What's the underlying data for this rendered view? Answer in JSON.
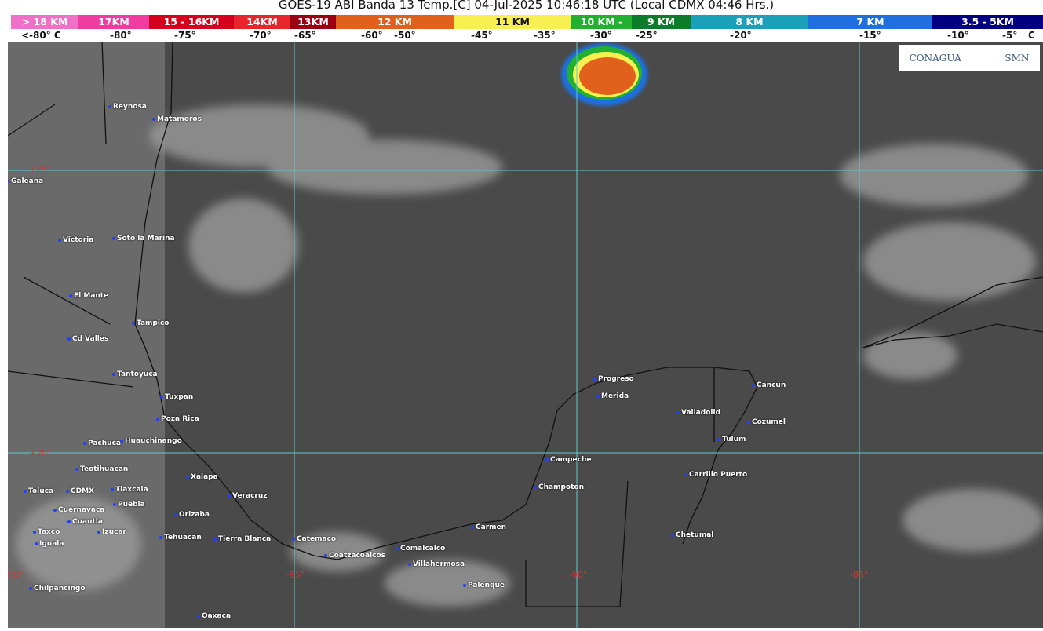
{
  "title": "GOES-19 ABI Banda 13 Temp.[C] 04-Jul-2025 10:46:18 UTC (Local CDMX  04:46 Hrs.)",
  "scale": [
    {
      "label": "> 18 KM",
      "color": "#f070c8"
    },
    {
      "label": "17KM",
      "color": "#f03ca0"
    },
    {
      "label": "15 - 16KM",
      "color": "#d4001c"
    },
    {
      "label": "14KM",
      "color": "#e8242c"
    },
    {
      "label": "13KM",
      "color": "#9a0012"
    },
    {
      "label": "12 KM",
      "color": "#e0601c"
    },
    {
      "label": "11 KM",
      "color": "#f8f050"
    },
    {
      "label": "10 KM -",
      "color": "#22b030"
    },
    {
      "label": "9 KM",
      "color": "#0b7d2a"
    },
    {
      "label": "8 KM",
      "color": "#1aa0b8"
    },
    {
      "label": "7 KM",
      "color": "#1f6fe0"
    },
    {
      "label": "3.5 - 5KM",
      "color": "#000080"
    }
  ],
  "temps": [
    "<-80° C",
    "-80°",
    "-75°",
    "-70°",
    "-65°",
    "-60°",
    "-50°",
    "-45°",
    "-35°",
    "-30°",
    "-25°",
    "-20°",
    "-15°",
    "-10°",
    "-5°",
    "C"
  ],
  "grid_labels": [
    "+25°",
    "+20°",
    "-100°",
    "-95°",
    "-90°",
    "-85°"
  ],
  "cities": [
    "Reynosa",
    "Matamoros",
    "Galeana",
    "Victoria",
    "Soto la Marina",
    "El Mante",
    "Tampico",
    "Cd Valles",
    "Tantoyuca",
    "Tuxpan",
    "Poza Rica",
    "Pachuca",
    "Huauchinango",
    "Teotihuacan",
    "Xalapa",
    "Toluca",
    "CDMX",
    "Tlaxcala",
    "Puebla",
    "Veracruz",
    "Cuernavaca",
    "Cuautla",
    "Orizaba",
    "Izucar",
    "Taxco",
    "Iguala",
    "Tehuacan",
    "Tierra Blanca",
    "Catemaco",
    "Coatzacoalcos",
    "Comalcalco",
    "Villahermosa",
    "Palenque",
    "Chilpancingo",
    "Oaxaca",
    "Carmen",
    "Champoton",
    "Campeche",
    "Progreso",
    "Merida",
    "Valladolid",
    "Cancun",
    "Cozumel",
    "Tulum",
    "Carrillo Puerto",
    "Chetumal"
  ],
  "logo": {
    "left": "CONAGUA",
    "right": "SMN"
  }
}
